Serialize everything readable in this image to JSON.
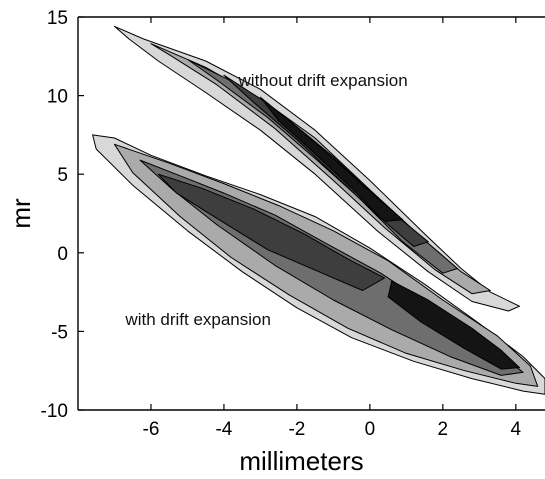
{
  "chart_data": {
    "type": "contour",
    "title": "",
    "xlabel": "millimeters",
    "ylabel": "mr",
    "xlim": [
      -8,
      4.8
    ],
    "ylim": [
      -10,
      15
    ],
    "xticks": [
      -6,
      -4,
      -2,
      0,
      2,
      4
    ],
    "yticks": [
      -10,
      -5,
      0,
      5,
      10,
      15
    ],
    "xtick_labels": [
      "-6",
      "-4",
      "-2",
      "0",
      "2",
      "4"
    ],
    "ytick_labels": [
      "-10",
      "-5",
      "0",
      "5",
      "10",
      "15"
    ],
    "grid": false,
    "legend": "none",
    "fill_colors": [
      "#d8d8d8",
      "#aaaaaa",
      "#6e6e6e",
      "#3e3e3e",
      "#141414"
    ],
    "line_color": "#000000",
    "annotations": [
      {
        "text": "without drift expansion",
        "x": -3.6,
        "y": 10.6
      },
      {
        "text": "with drift expansion",
        "x": -6.7,
        "y": -4.6
      }
    ],
    "series": [
      {
        "name": "without drift expansion",
        "levels": [
          [
            [
              -7.0,
              14.4
            ],
            [
              -6.2,
              13.6
            ],
            [
              -4.5,
              12.2
            ],
            [
              -3.0,
              10.4
            ],
            [
              -1.5,
              7.8
            ],
            [
              0.0,
              4.6
            ],
            [
              1.5,
              1.2
            ],
            [
              2.5,
              -1.0
            ],
            [
              3.3,
              -2.5
            ],
            [
              4.1,
              -3.4
            ],
            [
              3.8,
              -3.7
            ],
            [
              2.8,
              -3.1
            ],
            [
              1.6,
              -1.2
            ],
            [
              0.2,
              1.4
            ],
            [
              -1.5,
              5.0
            ],
            [
              -3.0,
              7.8
            ],
            [
              -4.5,
              10.2
            ],
            [
              -5.8,
              12.2
            ],
            [
              -6.6,
              13.6
            ]
          ],
          [
            [
              -6.0,
              13.3
            ],
            [
              -4.5,
              11.8
            ],
            [
              -3.0,
              9.8
            ],
            [
              -1.5,
              7.3
            ],
            [
              0.0,
              4.0
            ],
            [
              1.5,
              0.8
            ],
            [
              2.5,
              -1.2
            ],
            [
              3.3,
              -2.4
            ],
            [
              2.8,
              -2.6
            ],
            [
              1.8,
              -1.1
            ],
            [
              0.4,
              1.6
            ],
            [
              -1.0,
              4.6
            ],
            [
              -2.6,
              7.9
            ],
            [
              -4.2,
              10.7
            ],
            [
              -5.5,
              12.6
            ]
          ],
          [
            [
              -5.0,
              12.3
            ],
            [
              -3.6,
              10.7
            ],
            [
              -2.2,
              8.4
            ],
            [
              -1.0,
              6.1
            ],
            [
              0.2,
              3.5
            ],
            [
              1.4,
              1.0
            ],
            [
              2.4,
              -1.0
            ],
            [
              2.0,
              -1.3
            ],
            [
              0.9,
              0.7
            ],
            [
              -0.3,
              3.5
            ],
            [
              -1.5,
              6.0
            ],
            [
              -2.8,
              8.6
            ],
            [
              -4.2,
              11.0
            ]
          ],
          [
            [
              -4.0,
              11.3
            ],
            [
              -2.8,
              9.5
            ],
            [
              -1.7,
              7.2
            ],
            [
              -0.6,
              5.0
            ],
            [
              0.5,
              2.8
            ],
            [
              1.6,
              0.7
            ],
            [
              1.2,
              0.4
            ],
            [
              0.2,
              2.4
            ],
            [
              -0.9,
              4.8
            ],
            [
              -2.0,
              7.2
            ],
            [
              -3.2,
              9.6
            ]
          ],
          [
            [
              -3.0,
              9.9
            ],
            [
              -2.0,
              8.0
            ],
            [
              -1.0,
              6.0
            ],
            [
              0.0,
              3.9
            ],
            [
              0.9,
              2.1
            ],
            [
              0.4,
              2.0
            ],
            [
              -0.5,
              4.1
            ],
            [
              -1.5,
              6.3
            ],
            [
              -2.5,
              8.4
            ]
          ]
        ]
      },
      {
        "name": "with drift expansion",
        "levels": [
          [
            [
              -7.6,
              7.5
            ],
            [
              -7.0,
              7.3
            ],
            [
              -6.0,
              6.2
            ],
            [
              -4.5,
              4.9
            ],
            [
              -3.0,
              3.7
            ],
            [
              -1.5,
              2.3
            ],
            [
              0.0,
              0.3
            ],
            [
              1.5,
              -2.0
            ],
            [
              3.0,
              -4.5
            ],
            [
              4.2,
              -6.6
            ],
            [
              4.8,
              -8.0
            ],
            [
              4.8,
              -9.0
            ],
            [
              4.2,
              -8.8
            ],
            [
              2.8,
              -8.0
            ],
            [
              1.2,
              -6.9
            ],
            [
              -0.5,
              -5.4
            ],
            [
              -2.0,
              -3.5
            ],
            [
              -3.5,
              -1.2
            ],
            [
              -5.0,
              1.4
            ],
            [
              -6.5,
              4.3
            ],
            [
              -7.5,
              6.6
            ]
          ],
          [
            [
              -7.0,
              6.9
            ],
            [
              -5.5,
              5.7
            ],
            [
              -4.0,
              4.4
            ],
            [
              -2.5,
              3.0
            ],
            [
              -1.0,
              1.4
            ],
            [
              0.5,
              -0.5
            ],
            [
              2.0,
              -3.0
            ],
            [
              3.5,
              -5.3
            ],
            [
              4.4,
              -7.2
            ],
            [
              4.6,
              -8.5
            ],
            [
              4.0,
              -8.3
            ],
            [
              2.6,
              -7.5
            ],
            [
              1.0,
              -6.4
            ],
            [
              -0.6,
              -4.8
            ],
            [
              -2.2,
              -2.7
            ],
            [
              -3.8,
              -0.3
            ],
            [
              -5.2,
              2.3
            ],
            [
              -6.5,
              5.1
            ]
          ],
          [
            [
              -6.3,
              5.9
            ],
            [
              -5.2,
              4.9
            ],
            [
              -4.0,
              3.8
            ],
            [
              -2.6,
              2.4
            ],
            [
              -1.2,
              0.6
            ],
            [
              0.3,
              -1.3
            ],
            [
              1.8,
              -3.6
            ],
            [
              3.2,
              -5.8
            ],
            [
              4.2,
              -7.6
            ],
            [
              3.6,
              -7.8
            ],
            [
              2.2,
              -6.6
            ],
            [
              0.6,
              -4.9
            ],
            [
              -1.0,
              -3.0
            ],
            [
              -2.6,
              -0.8
            ],
            [
              -4.2,
              1.8
            ],
            [
              -5.4,
              4.0
            ]
          ],
          [
            [
              -5.8,
              5.0
            ],
            [
              -4.6,
              4.1
            ],
            [
              -3.2,
              2.8
            ],
            [
              -1.8,
              1.2
            ],
            [
              -0.6,
              -0.4
            ],
            [
              0.4,
              -1.6
            ],
            [
              -0.2,
              -2.4
            ],
            [
              -1.4,
              -1.2
            ],
            [
              -2.8,
              0.2
            ],
            [
              -4.2,
              2.2
            ],
            [
              -5.3,
              3.8
            ]
          ],
          [
            [
              0.6,
              -1.8
            ],
            [
              1.6,
              -3.0
            ],
            [
              2.8,
              -4.8
            ],
            [
              3.6,
              -6.2
            ],
            [
              4.1,
              -7.3
            ],
            [
              3.6,
              -7.4
            ],
            [
              2.6,
              -6.1
            ],
            [
              1.4,
              -4.4
            ],
            [
              0.5,
              -2.8
            ]
          ]
        ]
      }
    ]
  }
}
